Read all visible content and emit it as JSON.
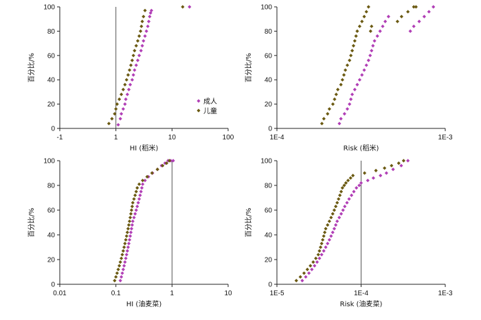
{
  "colors": {
    "adult": "#b13fb6",
    "child": "#6b5a12",
    "axis": "#222222",
    "refline": "#555555"
  },
  "chart_data": [
    {
      "type": "scatter",
      "xscale": "log",
      "xlim": [
        0.1,
        100
      ],
      "ylim": [
        0,
        100
      ],
      "xticks": [
        "-1",
        "1",
        "10",
        "100"
      ],
      "yticks": [
        "0",
        "20",
        "40",
        "60",
        "80",
        "100"
      ],
      "xlabel": "HI (稻米)",
      "ylabel": "百分比/%",
      "refline_x": 1,
      "legend": {
        "position": "right-middle",
        "entries": [
          "成人",
          "儿童"
        ]
      },
      "series": [
        {
          "name": "成人",
          "color": "adult",
          "x": [
            1.1,
            1.2,
            1.25,
            1.35,
            1.45,
            1.5,
            1.6,
            1.7,
            1.8,
            1.95,
            2.05,
            2.15,
            2.3,
            2.45,
            2.6,
            2.8,
            2.95,
            3.1,
            3.3,
            3.5,
            3.7,
            3.85,
            4.0,
            4.15,
            4.3,
            20.5
          ],
          "y": [
            3,
            8,
            12,
            16,
            20,
            24,
            28,
            32,
            36,
            40,
            44,
            48,
            52,
            56,
            60,
            64,
            68,
            72,
            76,
            80,
            84,
            88,
            92,
            95,
            97,
            100
          ]
        },
        {
          "name": "儿童",
          "color": "child",
          "x": [
            0.75,
            0.85,
            0.95,
            1.0,
            1.05,
            1.15,
            1.25,
            1.35,
            1.45,
            1.55,
            1.65,
            1.75,
            1.85,
            1.95,
            2.05,
            2.15,
            2.3,
            2.45,
            2.6,
            2.75,
            2.85,
            2.95,
            3.1,
            3.3,
            15.5
          ],
          "y": [
            4,
            8,
            12,
            16,
            20,
            24,
            28,
            32,
            36,
            40,
            44,
            48,
            52,
            56,
            60,
            64,
            68,
            72,
            76,
            80,
            84,
            88,
            92,
            97,
            100
          ]
        }
      ]
    },
    {
      "type": "scatter",
      "xscale": "log",
      "xlim": [
        0.0001,
        0.001
      ],
      "ylim": [
        0,
        100
      ],
      "xticks": [
        "1E-4",
        "1E-3"
      ],
      "yticks": [
        "0",
        "20",
        "40",
        "60",
        "80",
        "100"
      ],
      "xlabel": "Risk (稻米)",
      "ylabel": "百分比/%",
      "series": [
        {
          "name": "成人",
          "color": "adult",
          "x": [
            0.000235,
            0.00024,
            0.000252,
            0.000262,
            0.00027,
            0.000275,
            0.00028,
            0.00029,
            0.0003,
            0.00031,
            0.00032,
            0.00033,
            0.00034,
            0.00035,
            0.000358,
            0.000365,
            0.000372,
            0.00038,
            0.000395,
            0.00041,
            0.000425,
            0.00044,
            0.00046,
            0.00062,
            0.00065,
            0.0007,
            0.00075,
            0.0008,
            0.00085
          ],
          "y": [
            4,
            8,
            12,
            16,
            20,
            24,
            28,
            32,
            36,
            40,
            44,
            48,
            52,
            56,
            60,
            64,
            68,
            72,
            76,
            80,
            84,
            88,
            92,
            80,
            84,
            88,
            92,
            96,
            100
          ]
        },
        {
          "name": "儿童",
          "color": "child",
          "x": [
            0.000185,
            0.00019,
            0.0002,
            0.000205,
            0.000215,
            0.00022,
            0.000225,
            0.00023,
            0.00024,
            0.000245,
            0.00025,
            0.000255,
            0.000262,
            0.00027,
            0.000275,
            0.00028,
            0.000285,
            0.00029,
            0.000295,
            0.0003,
            0.00031,
            0.00032,
            0.00033,
            0.00034,
            0.00035,
            0.00036,
            0.000365,
            0.00052,
            0.00055,
            0.0006,
            0.00065,
            0.00067
          ],
          "y": [
            4,
            8,
            12,
            16,
            20,
            24,
            28,
            32,
            36,
            40,
            44,
            48,
            52,
            56,
            60,
            64,
            68,
            72,
            76,
            80,
            84,
            88,
            92,
            96,
            100,
            80,
            84,
            88,
            92,
            96,
            100,
            100
          ]
        }
      ]
    },
    {
      "type": "scatter",
      "xscale": "log",
      "xlim": [
        0.01,
        10
      ],
      "ylim": [
        0,
        100
      ],
      "xticks": [
        "0.01",
        "0.1",
        "1",
        "10"
      ],
      "yticks": [
        "0",
        "20",
        "40",
        "60",
        "80",
        "100"
      ],
      "xlabel": "HI (油麦菜)",
      "ylabel": "百分比/%",
      "refline_x": 1,
      "series": [
        {
          "name": "成人",
          "color": "adult",
          "x": [
            0.12,
            0.125,
            0.13,
            0.135,
            0.14,
            0.145,
            0.15,
            0.155,
            0.16,
            0.165,
            0.17,
            0.175,
            0.18,
            0.185,
            0.19,
            0.195,
            0.2,
            0.21,
            0.22,
            0.23,
            0.24,
            0.25,
            0.26,
            0.27,
            0.28,
            0.29,
            0.3,
            0.33,
            0.38,
            0.45,
            0.55,
            0.65,
            0.75,
            0.85,
            0.95,
            1.05
          ],
          "y": [
            3,
            6,
            9,
            12,
            15,
            18,
            21,
            24,
            27,
            30,
            33,
            36,
            39,
            42,
            45,
            48,
            51,
            54,
            57,
            60,
            63,
            66,
            69,
            72,
            75,
            78,
            81,
            84,
            87,
            90,
            93,
            96,
            98,
            100,
            100,
            100
          ]
        },
        {
          "name": "儿童",
          "color": "child",
          "x": [
            0.095,
            0.1,
            0.105,
            0.11,
            0.115,
            0.12,
            0.125,
            0.13,
            0.135,
            0.14,
            0.145,
            0.15,
            0.155,
            0.16,
            0.165,
            0.17,
            0.175,
            0.18,
            0.185,
            0.19,
            0.195,
            0.2,
            0.21,
            0.22,
            0.23,
            0.24,
            0.26,
            0.3,
            0.36,
            0.44,
            0.55,
            0.68,
            0.8,
            0.9
          ],
          "y": [
            3,
            6,
            9,
            12,
            15,
            18,
            21,
            24,
            27,
            30,
            33,
            36,
            39,
            42,
            45,
            48,
            51,
            54,
            57,
            60,
            63,
            66,
            69,
            72,
            75,
            78,
            81,
            84,
            87,
            90,
            93,
            96,
            98,
            100
          ]
        }
      ]
    },
    {
      "type": "scatter",
      "xscale": "log",
      "xlim": [
        1e-05,
        0.001
      ],
      "ylim": [
        0,
        100
      ],
      "xticks": [
        "1E-5",
        "1E-4",
        "1E-3"
      ],
      "yticks": [
        "0",
        "20",
        "40",
        "60",
        "80",
        "100"
      ],
      "xlabel": "Risk (油麦菜)",
      "ylabel": "百分比/%",
      "refline_x": 0.0001,
      "series": [
        {
          "name": "成人",
          "color": "adult",
          "x": [
            2e-05,
            2.2e-05,
            2.4e-05,
            2.6e-05,
            2.8e-05,
            3e-05,
            3.2e-05,
            3.4e-05,
            3.6e-05,
            3.8e-05,
            4e-05,
            4.2e-05,
            4.4e-05,
            4.6e-05,
            4.8e-05,
            5e-05,
            5.2e-05,
            5.5e-05,
            5.8e-05,
            6.1e-05,
            6.4e-05,
            6.8e-05,
            7.2e-05,
            7.7e-05,
            8.2e-05,
            8.8e-05,
            9.5e-05,
            0.0001,
            0.00012,
            0.00014,
            0.00017,
            0.0002,
            0.00024,
            0.0003,
            0.00036
          ],
          "y": [
            3,
            6,
            9,
            12,
            15,
            18,
            21,
            24,
            27,
            30,
            33,
            36,
            39,
            42,
            45,
            48,
            51,
            54,
            57,
            60,
            63,
            66,
            69,
            72,
            75,
            78,
            80,
            82,
            84,
            86,
            88,
            90,
            93,
            96,
            100
          ]
        },
        {
          "name": "儿童",
          "color": "child",
          "x": [
            1.7e-05,
            1.9e-05,
            2.1e-05,
            2.3e-05,
            2.5e-05,
            2.7e-05,
            2.9e-05,
            3.1e-05,
            3.2e-05,
            3.3e-05,
            3.4e-05,
            3.5e-05,
            3.6e-05,
            3.7e-05,
            3.8e-05,
            4e-05,
            4.2e-05,
            4.4e-05,
            4.6e-05,
            4.8e-05,
            5e-05,
            5.2e-05,
            5.4e-05,
            5.6e-05,
            5.8e-05,
            6e-05,
            6.3e-05,
            6.6e-05,
            7e-05,
            7.5e-05,
            8e-05,
            0.00011,
            0.00015,
            0.00019,
            0.00023,
            0.00028,
            0.00032
          ],
          "y": [
            3,
            6,
            9,
            12,
            15,
            18,
            21,
            24,
            27,
            30,
            33,
            36,
            39,
            42,
            45,
            48,
            51,
            54,
            57,
            60,
            63,
            66,
            69,
            72,
            75,
            78,
            80,
            82,
            84,
            86,
            88,
            90,
            92,
            94,
            96,
            98,
            100
          ]
        }
      ]
    }
  ]
}
